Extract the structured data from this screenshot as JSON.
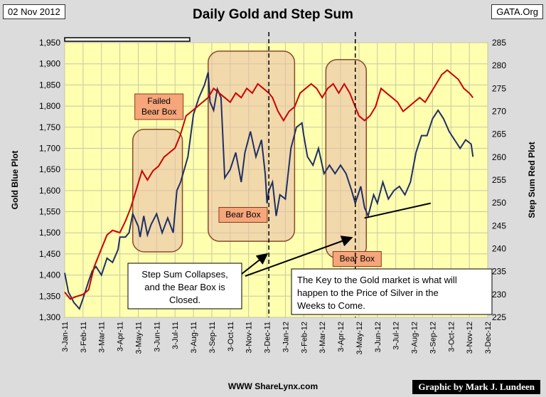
{
  "date": "02 Nov 2012",
  "source": "GATA.Org",
  "title": "Daily Gold and Step Sum",
  "website": "WWW ShareLynx.com",
  "credit": "Graphic by Mark J. Lundeen",
  "colors": {
    "background": "#dcdcdc",
    "plot_bg": "#ffffb0",
    "grid": "#c8c8a0",
    "gold": "#1f2f66",
    "stepsum": "#cc0000",
    "box_fill": "#e8c0a8",
    "box_stroke": "#8b4a2b",
    "label_fill": "#f5a67a"
  },
  "chart_data": {
    "type": "line",
    "title": "Daily Gold and Step Sum",
    "xlabel": "",
    "ylabel_left": "Gold Blue Plot",
    "ylabel_right": "Step Sum Red Plot",
    "ylim_left": [
      1300,
      1950
    ],
    "ylim_right": [
      225,
      285
    ],
    "xlim": [
      0,
      23
    ],
    "yticks_left": [
      "1,300",
      "1,350",
      "1,400",
      "1,450",
      "1,500",
      "1,550",
      "1,600",
      "1,650",
      "1,700",
      "1,750",
      "1,800",
      "1,850",
      "1,900",
      "1,950"
    ],
    "yticks_right": [
      "225",
      "230",
      "235",
      "240",
      "245",
      "250",
      "255",
      "260",
      "265",
      "270",
      "275",
      "280",
      "285"
    ],
    "xticks": [
      "3-Jan-11",
      "3-Feb-11",
      "3-Mar-11",
      "3-Apr-11",
      "3-May-11",
      "3-Jun-11",
      "3-Jul-11",
      "3-Aug-11",
      "3-Sep-11",
      "3-Oct-11",
      "3-Nov-11",
      "3-Dec-11",
      "3-Jan-12",
      "3-Feb-12",
      "3-Mar-12",
      "3-Apr-12",
      "3-May-12",
      "3-Jun-12",
      "3-Jul-12",
      "3-Aug-12",
      "3-Sep-12",
      "3-Oct-12",
      "3-Nov-12",
      "3-Dec-12"
    ],
    "grid": true,
    "series": [
      {
        "name": "Gold",
        "axis": "left",
        "x": [
          0,
          0.2,
          0.5,
          0.8,
          1.0,
          1.3,
          1.5,
          1.7,
          2.0,
          2.3,
          2.6,
          2.9,
          3.0,
          3.3,
          3.5,
          3.7,
          4.0,
          4.1,
          4.3,
          4.5,
          4.7,
          5.0,
          5.3,
          5.6,
          5.9,
          6.1,
          6.3,
          6.5,
          6.7,
          7.0,
          7.3,
          7.6,
          7.8,
          7.9,
          8.1,
          8.3,
          8.5,
          8.7,
          9.0,
          9.3,
          9.6,
          9.8,
          10.1,
          10.4,
          10.7,
          10.9,
          11.0,
          11.1,
          11.3,
          11.5,
          11.7,
          12.0,
          12.3,
          12.6,
          12.9,
          13.0,
          13.2,
          13.5,
          13.8,
          14.1,
          14.4,
          14.7,
          15.0,
          15.3,
          15.6,
          15.8,
          16.1,
          16.3,
          16.5,
          16.8,
          17.0,
          17.3,
          17.6,
          17.9,
          18.2,
          18.5,
          18.8,
          19.1,
          19.4,
          19.7,
          20.0,
          20.3,
          20.6,
          20.9,
          21.2,
          21.5,
          21.8,
          22.1,
          22.2
        ],
        "y": [
          1405,
          1360,
          1335,
          1320,
          1345,
          1385,
          1410,
          1420,
          1400,
          1440,
          1430,
          1460,
          1490,
          1490,
          1500,
          1545,
          1515,
          1490,
          1540,
          1495,
          1520,
          1545,
          1500,
          1535,
          1500,
          1600,
          1620,
          1650,
          1680,
          1780,
          1820,
          1850,
          1880,
          1810,
          1790,
          1840,
          1820,
          1630,
          1650,
          1690,
          1620,
          1690,
          1740,
          1680,
          1720,
          1640,
          1570,
          1600,
          1620,
          1540,
          1590,
          1580,
          1700,
          1750,
          1760,
          1730,
          1680,
          1660,
          1700,
          1640,
          1660,
          1640,
          1660,
          1640,
          1600,
          1570,
          1610,
          1560,
          1540,
          1590,
          1570,
          1620,
          1580,
          1600,
          1610,
          1590,
          1620,
          1690,
          1730,
          1730,
          1770,
          1790,
          1770,
          1740,
          1720,
          1700,
          1720,
          1710,
          1680
        ]
      },
      {
        "name": "Step Sum",
        "axis": "right",
        "x": [
          0,
          0.3,
          0.6,
          1.0,
          1.3,
          1.6,
          2.0,
          2.3,
          2.6,
          3.0,
          3.3,
          3.6,
          3.9,
          4.2,
          4.5,
          4.8,
          5.1,
          5.4,
          5.7,
          6.0,
          6.3,
          6.6,
          6.9,
          7.2,
          7.5,
          7.8,
          8.1,
          8.4,
          8.7,
          9.0,
          9.3,
          9.6,
          9.9,
          10.2,
          10.5,
          10.8,
          11.1,
          11.3,
          11.6,
          11.9,
          12.2,
          12.5,
          12.8,
          13.1,
          13.4,
          13.7,
          14.0,
          14.3,
          14.6,
          14.9,
          15.2,
          15.5,
          15.8,
          16.0,
          16.3,
          16.6,
          16.9,
          17.2,
          17.5,
          17.8,
          18.1,
          18.4,
          18.7,
          19.0,
          19.3,
          19.6,
          19.9,
          20.2,
          20.5,
          20.8,
          21.1,
          21.4,
          21.7,
          22.0,
          22.2
        ],
        "y": [
          230.5,
          229,
          229.5,
          230,
          231,
          236,
          240,
          243,
          244,
          243.5,
          246,
          249,
          253,
          257,
          255,
          257,
          258,
          260,
          261,
          262,
          265,
          269,
          270,
          271,
          272,
          273,
          275,
          274,
          273,
          272,
          274,
          273,
          275,
          274,
          276,
          275,
          274,
          273,
          270,
          268,
          270,
          271,
          274,
          275,
          276,
          275,
          273,
          275,
          276,
          274,
          276,
          274,
          271,
          269,
          268,
          269,
          271,
          275,
          274,
          273,
          272,
          270,
          271,
          272,
          273,
          272,
          274,
          276,
          278,
          279,
          278,
          277,
          275,
          274,
          273
        ]
      }
    ],
    "annotations": {
      "bear_boxes": [
        {
          "label": "Failed Bear Box",
          "x": [
            3.7,
            6.4
          ],
          "y": [
            1455,
            1745
          ],
          "label_text": [
            "Failed",
            "Bear Box"
          ]
        },
        {
          "label": "Bear Box",
          "x": [
            7.8,
            12.5
          ],
          "y": [
            1480,
            1930
          ]
        },
        {
          "label": "Bear Box",
          "x": [
            14.2,
            16.4
          ],
          "y": [
            1440,
            1910
          ]
        }
      ],
      "callouts": [
        {
          "id": "step-sum",
          "lines": [
            "Step Sum Collapses,",
            "and the Bear Box is",
            "Closed."
          ]
        },
        {
          "id": "key",
          "lines": [
            "The Key to the Gold market is what will",
            "happen to the Price of Silver in the",
            "Weeks to Come."
          ]
        }
      ],
      "dashed_lines_x": [
        11.1,
        15.8
      ]
    }
  }
}
